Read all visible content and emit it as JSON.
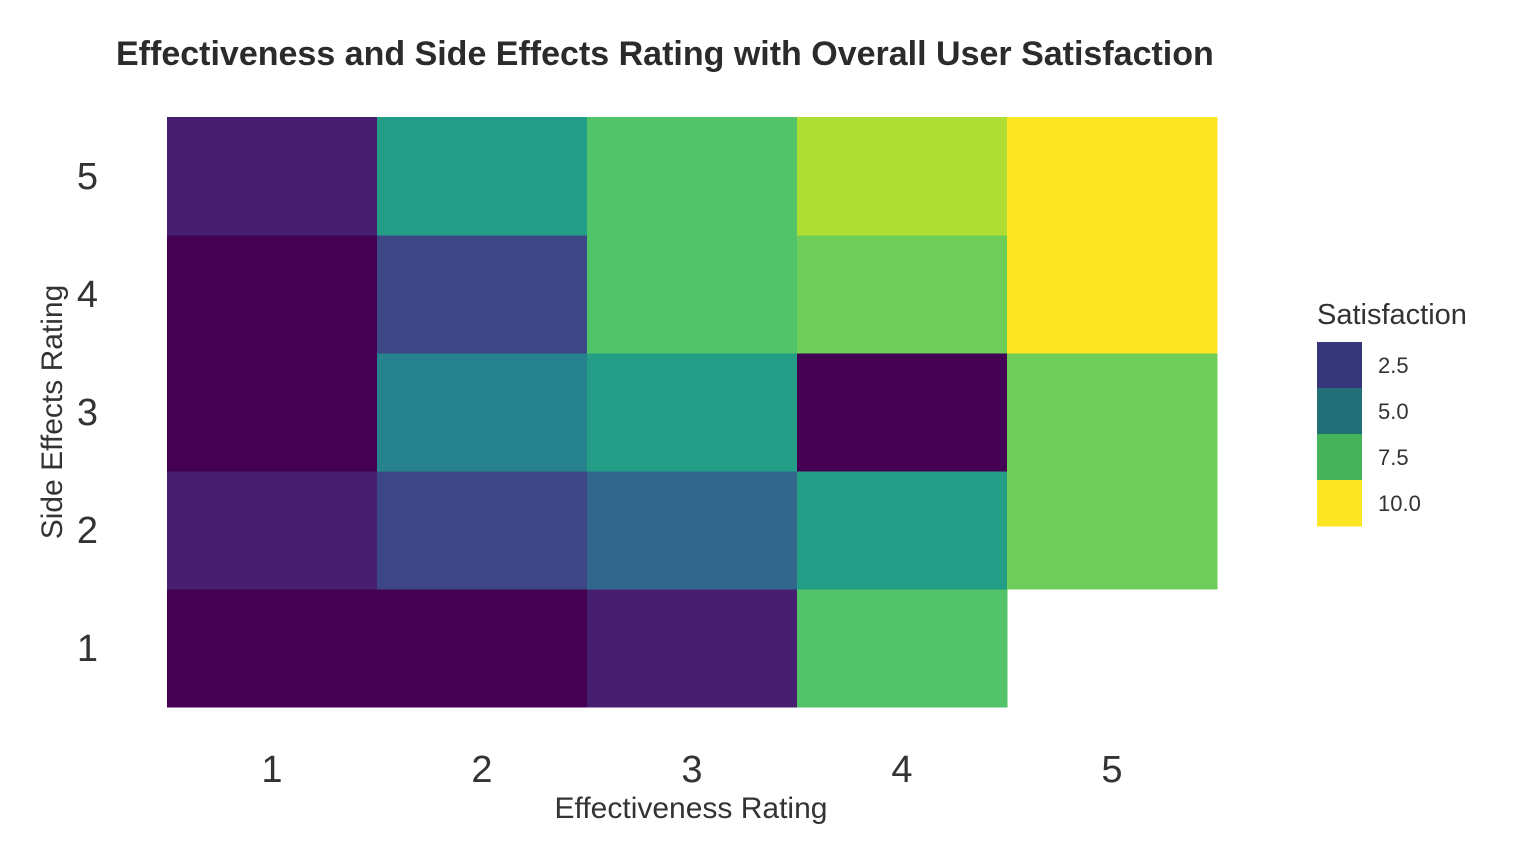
{
  "chart_data": {
    "type": "heatmap",
    "title": "Effectiveness and Side Effects Rating with Overall User Satisfaction",
    "xlabel": "Effectiveness Rating",
    "ylabel": "Side Effects Rating",
    "x_categories": [
      "1",
      "2",
      "3",
      "4",
      "5"
    ],
    "y_categories": [
      "1",
      "2",
      "3",
      "4",
      "5"
    ],
    "cells": [
      {
        "x": "1",
        "y": "1",
        "value": 1.0
      },
      {
        "x": "2",
        "y": "1",
        "value": 1.0
      },
      {
        "x": "3",
        "y": "1",
        "value": 2.0
      },
      {
        "x": "4",
        "y": "1",
        "value": 7.5
      },
      {
        "x": "1",
        "y": "2",
        "value": 2.0
      },
      {
        "x": "2",
        "y": "2",
        "value": 3.0
      },
      {
        "x": "3",
        "y": "2",
        "value": 4.0
      },
      {
        "x": "4",
        "y": "2",
        "value": 6.0
      },
      {
        "x": "5",
        "y": "2",
        "value": 8.0
      },
      {
        "x": "1",
        "y": "3",
        "value": 1.0
      },
      {
        "x": "2",
        "y": "3",
        "value": 5.0
      },
      {
        "x": "3",
        "y": "3",
        "value": 6.0
      },
      {
        "x": "4",
        "y": "3",
        "value": 1.0
      },
      {
        "x": "5",
        "y": "3",
        "value": 8.0
      },
      {
        "x": "1",
        "y": "4",
        "value": 1.0
      },
      {
        "x": "2",
        "y": "4",
        "value": 3.0
      },
      {
        "x": "3",
        "y": "4",
        "value": 7.5
      },
      {
        "x": "4",
        "y": "4",
        "value": 8.0
      },
      {
        "x": "5",
        "y": "4",
        "value": 10.0
      },
      {
        "x": "1",
        "y": "5",
        "value": 2.0
      },
      {
        "x": "2",
        "y": "5",
        "value": 6.0
      },
      {
        "x": "3",
        "y": "5",
        "value": 7.5
      },
      {
        "x": "4",
        "y": "5",
        "value": 9.0
      },
      {
        "x": "5",
        "y": "5",
        "value": 10.0
      }
    ],
    "value_range": [
      1,
      10
    ],
    "colormap": "viridis",
    "grid": false,
    "legend": {
      "title": "Satisfaction",
      "placement": "right",
      "breaks": [
        {
          "label": "2.5",
          "color": "#35377a"
        },
        {
          "label": "5.0",
          "color": "#226f78"
        },
        {
          "label": "7.5",
          "color": "#44b35a"
        },
        {
          "label": "10.0",
          "color": "#fde725"
        }
      ]
    }
  }
}
